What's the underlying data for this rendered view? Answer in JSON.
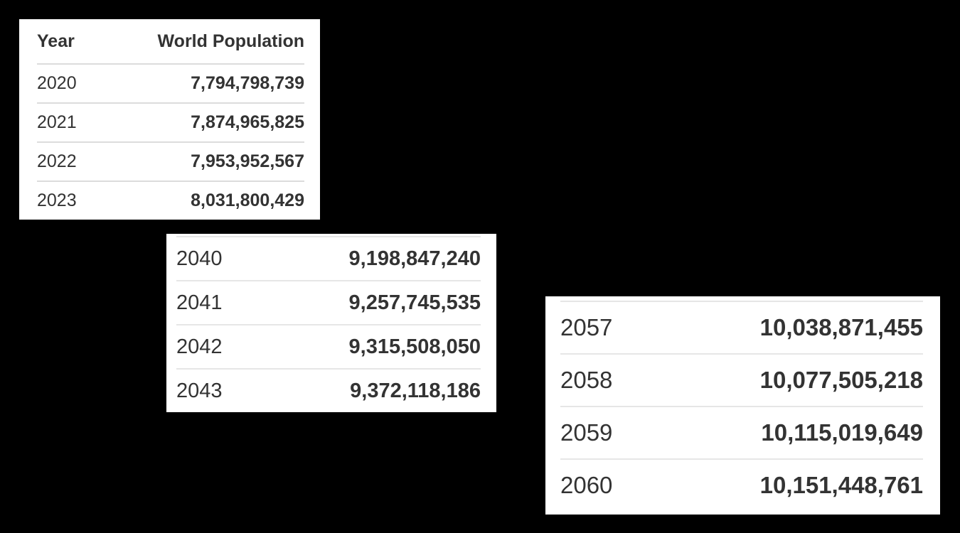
{
  "table1": {
    "header": {
      "year": "Year",
      "population": "World Population"
    },
    "rows": [
      {
        "year": "2020",
        "population": "7,794,798,739"
      },
      {
        "year": "2021",
        "population": "7,874,965,825"
      },
      {
        "year": "2022",
        "population": "7,953,952,567"
      },
      {
        "year": "2023",
        "population": "8,031,800,429"
      }
    ]
  },
  "table2": {
    "rows": [
      {
        "year": "2040",
        "population": "9,198,847,240"
      },
      {
        "year": "2041",
        "population": "9,257,745,535"
      },
      {
        "year": "2042",
        "population": "9,315,508,050"
      },
      {
        "year": "2043",
        "population": "9,372,118,186"
      }
    ]
  },
  "table3": {
    "rows": [
      {
        "year": "2057",
        "population": "10,038,871,455"
      },
      {
        "year": "2058",
        "population": "10,077,505,218"
      },
      {
        "year": "2059",
        "population": "10,115,019,649"
      },
      {
        "year": "2060",
        "population": "10,151,448,761"
      }
    ]
  }
}
